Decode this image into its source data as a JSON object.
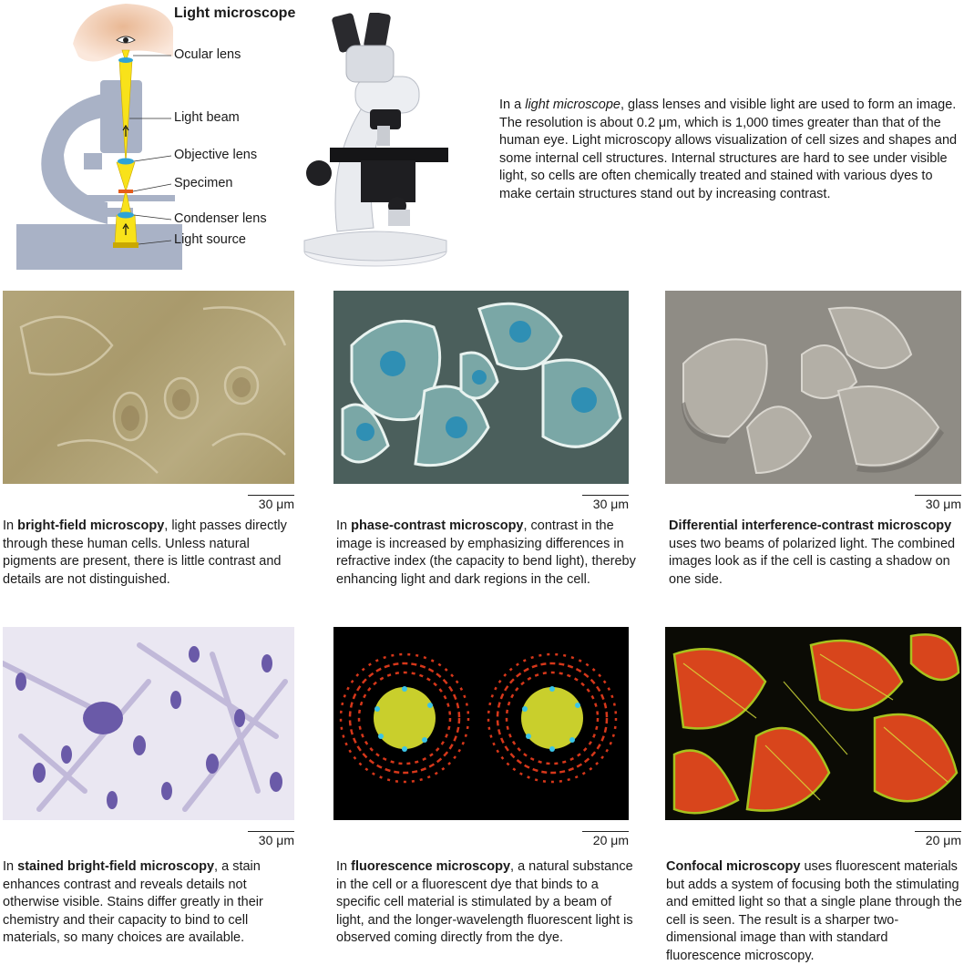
{
  "diagram": {
    "title": "Light microscope",
    "labels": [
      "Ocular lens",
      "Light beam",
      "Objective lens",
      "Specimen",
      "Condenser lens",
      "Light source"
    ]
  },
  "intro": {
    "pre": "In a ",
    "term": "light microscope",
    "post": ", glass lenses and visible light are used to form an image. The resolution is about 0.2 μm, which is 1,000 times greater than that of the human eye. Light microscopy allows visualization of cell sizes and shapes and some internal cell structures. Internal structures are hard to see under visible light, so cells are often chemically treated and stained with various dyes to make certain structures stand out by increasing contrast."
  },
  "panels": [
    {
      "scale": "30 μm",
      "pre": "In ",
      "term": "bright-field microscopy",
      "post": ", light passes directly through these human cells. Unless natural pigments are present, there is little contrast and details are not distinguished."
    },
    {
      "scale": "30 μm",
      "pre": "In ",
      "term": "phase-contrast microscopy",
      "post": ", contrast in the image is increased by emphasizing differences in refractive index (the capacity to bend light), thereby enhancing light and dark regions in the cell."
    },
    {
      "scale": "30 μm",
      "pre": "",
      "term": "Differential interference-contrast microscopy",
      "post": " uses two beams of polarized light. The combined images look as if the cell is casting a shadow on one side."
    },
    {
      "scale": "30 μm",
      "pre": "In ",
      "term": "stained bright-field microscopy",
      "post": ", a stain enhances contrast and reveals details not otherwise visible. Stains differ greatly in their chemistry and their capacity to bind to cell materials, so many choices are available."
    },
    {
      "scale": "20 μm",
      "pre": "In ",
      "term": "fluorescence microscopy",
      "post": ", a natural substance in the cell or a fluorescent dye that binds to a specific cell material is stimulated by a beam of light, and the longer-wavelength fluorescent light is observed coming directly from the dye."
    },
    {
      "scale": "20 μm",
      "pre": "",
      "term": "Confocal microscopy",
      "post": " uses fluorescent materials but adds a system of focusing both the stimulating and emitted light so that a single plane through the cell is seen. The result is a sharper two-dimensional image than with standard fluorescence microscopy."
    }
  ]
}
